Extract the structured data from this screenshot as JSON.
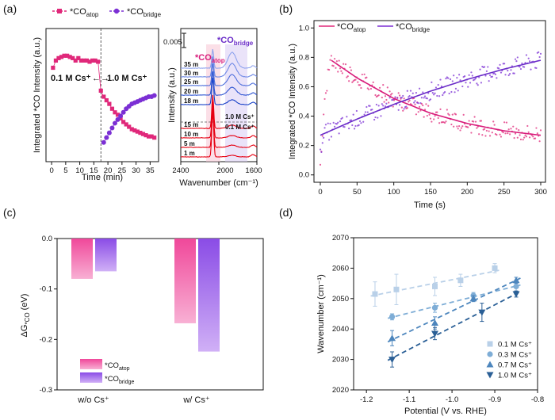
{
  "panels": {
    "a": {
      "label": "(a)"
    },
    "b": {
      "label": "(b)"
    },
    "c": {
      "label": "(c)"
    },
    "d": {
      "label": "(d)"
    }
  },
  "chart_data": [
    {
      "id": "a-left",
      "type": "scatter",
      "ylabel": "Integrated *CO Intensity (a.u.)",
      "xlabel": "Time (min)",
      "xlim": [
        -2,
        38
      ],
      "xticks": [
        0,
        5,
        10,
        15,
        20,
        25,
        30,
        35
      ],
      "ylim": [
        0,
        1
      ],
      "switch_time": 17.5,
      "annotation": {
        "left": "0.1 M Cs⁺",
        "arrow": "←→",
        "right": "1.0 M Cs⁺"
      },
      "legend": [
        {
          "key": "atop",
          "label_main": "*CO",
          "label_sub": "atop",
          "color": "#e0287a"
        },
        {
          "key": "bridge",
          "label_main": "*CO",
          "label_sub": "bridge",
          "color": "#7b2fd4"
        }
      ],
      "series": [
        {
          "name": "*CO atop",
          "color": "#e0287a",
          "marker": "square",
          "x": [
            0.5,
            1.5,
            2.5,
            3.5,
            4.5,
            5.5,
            6.5,
            7.5,
            8.5,
            9.5,
            10.5,
            11.5,
            12.5,
            13.5,
            14.5,
            15.5,
            16.5,
            17.5,
            18.5,
            19.5,
            20.5,
            21.5,
            22.5,
            23.5,
            24.5,
            25.5,
            26.5,
            27.5,
            28.5,
            29.5,
            30.5,
            31.5,
            32.5,
            33.5,
            34.5,
            35.5,
            36.5
          ],
          "y": [
            0.74,
            0.8,
            0.82,
            0.83,
            0.84,
            0.84,
            0.83,
            0.82,
            0.8,
            0.82,
            0.8,
            0.8,
            0.8,
            0.79,
            0.8,
            0.8,
            0.79,
            0.55,
            0.5,
            0.47,
            0.44,
            0.4,
            0.37,
            0.35,
            0.32,
            0.29,
            0.27,
            0.25,
            0.23,
            0.22,
            0.21,
            0.2,
            0.19,
            0.18,
            0.17,
            0.17,
            0.16
          ]
        },
        {
          "name": "*CO bridge",
          "color": "#7b2fd4",
          "marker": "circle",
          "x": [
            18.5,
            19.5,
            20.5,
            21.5,
            22.5,
            23.5,
            24.5,
            25.5,
            26.5,
            27.5,
            28.5,
            29.5,
            30.5,
            31.5,
            32.5,
            33.5,
            34.5,
            35.5,
            36.5
          ],
          "y": [
            0.12,
            0.16,
            0.2,
            0.24,
            0.28,
            0.31,
            0.34,
            0.37,
            0.4,
            0.42,
            0.44,
            0.45,
            0.46,
            0.47,
            0.48,
            0.49,
            0.5,
            0.5,
            0.51
          ]
        }
      ]
    },
    {
      "id": "a-right",
      "type": "line",
      "xlabel": "Wavenumber (cm⁻¹)",
      "ylabel": "Intensity (a.u.)",
      "xlim": [
        2400,
        1600
      ],
      "xticks": [
        2400,
        2000,
        1600
      ],
      "tick_labels": [
        "2400",
        "2000",
        "1600"
      ],
      "scale_bar": "0.005",
      "peak_labels": [
        {
          "main": "*CO",
          "sub": "atop",
          "wavenumber": 2064
        },
        {
          "main": "*CO",
          "sub": "bridge",
          "wavenumber": 1850
        }
      ],
      "divider_labels": [
        "1.0 M Cs⁺",
        "0.1 M Cs⁺"
      ],
      "series": [
        {
          "label": "1 m",
          "color": "#e60012"
        },
        {
          "label": "5 m",
          "color": "#e60012"
        },
        {
          "label": "10 m",
          "color": "#e60012"
        },
        {
          "label": "15 m",
          "color": "#e60012"
        },
        {
          "label": "18 m",
          "color": "#1740c8"
        },
        {
          "label": "20 m",
          "color": "#2f55d2"
        },
        {
          "label": "25 m",
          "color": "#4e6fdc"
        },
        {
          "label": "30 m",
          "color": "#6e89e6"
        },
        {
          "label": "35 m",
          "color": "#8ea3ee"
        }
      ]
    },
    {
      "id": "b",
      "type": "scatter",
      "xlabel": "Time (s)",
      "ylabel": "Integrated *CO Intensity (a.u.)",
      "xlim": [
        0,
        300
      ],
      "ylim": [
        -0.05,
        1.05
      ],
      "xticks": [
        0,
        50,
        100,
        150,
        200,
        250,
        300
      ],
      "yticks": [
        0.0,
        0.2,
        0.4,
        0.6,
        0.8,
        1.0
      ],
      "ytick_labels": [
        "0.0",
        "0.2",
        "0.4",
        "0.6",
        "0.8",
        "1.0"
      ],
      "legend": [
        {
          "label_main": "*CO",
          "label_sub": "atop",
          "color": "#e0287a"
        },
        {
          "label_main": "*CO",
          "label_sub": "bridge",
          "color": "#7b2fd4"
        }
      ],
      "series": [
        {
          "name": "*CO atop",
          "color": "#e0287a",
          "fit": {
            "x": [
              15,
              50,
              100,
              150,
              200,
              250,
              300
            ],
            "y": [
              0.78,
              0.66,
              0.52,
              0.42,
              0.35,
              0.3,
              0.27
            ]
          },
          "points_rise": {
            "x": [
              0,
              3,
              6,
              9,
              12,
              15
            ],
            "y": [
              0.1,
              0.3,
              0.48,
              0.62,
              0.72,
              0.76
            ]
          }
        },
        {
          "name": "*CO bridge",
          "color": "#7b2fd4",
          "fit": {
            "x": [
              0,
              50,
              100,
              150,
              200,
              250,
              300
            ],
            "y": [
              0.27,
              0.38,
              0.48,
              0.57,
              0.65,
              0.72,
              0.78
            ]
          }
        }
      ]
    },
    {
      "id": "c",
      "type": "bar",
      "ylabel": "ΔG *CO (eV)",
      "ylabel_main": "ΔG",
      "ylabel_sub": "*CO",
      "ylabel_unit": "(eV)",
      "ylim": [
        -0.3,
        0.0
      ],
      "yticks": [
        0.0,
        -0.1,
        -0.2,
        -0.3
      ],
      "ytick_labels": [
        "0.0",
        "-0.1",
        "-0.2",
        "-0.3"
      ],
      "categories": [
        "w/o Cs⁺",
        "w/ Cs⁺"
      ],
      "series": [
        {
          "name": "*CO atop",
          "label_main": "*CO",
          "label_sub": "atop",
          "color_top": "#f0489a",
          "color_bottom": "#f8b0d4",
          "values": [
            -0.08,
            -0.168
          ]
        },
        {
          "name": "*CO bridge",
          "label_main": "*CO",
          "label_sub": "bridge",
          "color_top": "#8a4ce6",
          "color_bottom": "#d0b0f6",
          "values": [
            -0.065,
            -0.224
          ]
        }
      ]
    },
    {
      "id": "d",
      "type": "scatter",
      "xlabel": "Potential (V vs. RHE)",
      "ylabel": "Wavenumber (cm⁻¹)",
      "xlim": [
        -1.23,
        -0.8
      ],
      "ylim": [
        2020,
        2070
      ],
      "xticks": [
        -1.2,
        -1.1,
        -1.0,
        -0.9,
        -0.8
      ],
      "xtick_labels": [
        "-1.2",
        "-1.1",
        "-1.0",
        "-0.9",
        "-0.8"
      ],
      "yticks": [
        2020,
        2030,
        2040,
        2050,
        2060,
        2070
      ],
      "series": [
        {
          "name": "0.1 M Cs⁺",
          "color": "#b9d0e8",
          "marker": "square",
          "x": [
            -1.18,
            -1.13,
            -1.04,
            -0.98,
            -0.9
          ],
          "y": [
            2051.5,
            2053,
            2054,
            2056,
            2060
          ],
          "err": [
            4,
            5,
            3,
            2,
            1.5
          ]
        },
        {
          "name": "0.3 M Cs⁺",
          "color": "#7eadd6",
          "marker": "circle",
          "x": [
            -1.14,
            -1.04,
            -0.95,
            -0.85
          ],
          "y": [
            2044,
            2047,
            2051,
            2054
          ],
          "err": [
            1,
            1.5,
            1,
            1.5
          ]
        },
        {
          "name": "0.7 M Cs⁺",
          "color": "#4d86bd",
          "marker": "triangle-up",
          "x": [
            -1.14,
            -1.04,
            -0.95,
            -0.85
          ],
          "y": [
            2037,
            2042,
            2050,
            2056
          ],
          "err": [
            2.5,
            2,
            1,
            1
          ]
        },
        {
          "name": "1.0 M Cs⁺",
          "color": "#2a5f96",
          "marker": "triangle-down",
          "x": [
            -1.14,
            -1.04,
            -0.93,
            -0.85
          ],
          "y": [
            2030,
            2038.5,
            2045.5,
            2051.5
          ],
          "err": [
            2.5,
            2,
            3,
            1
          ]
        }
      ]
    }
  ]
}
